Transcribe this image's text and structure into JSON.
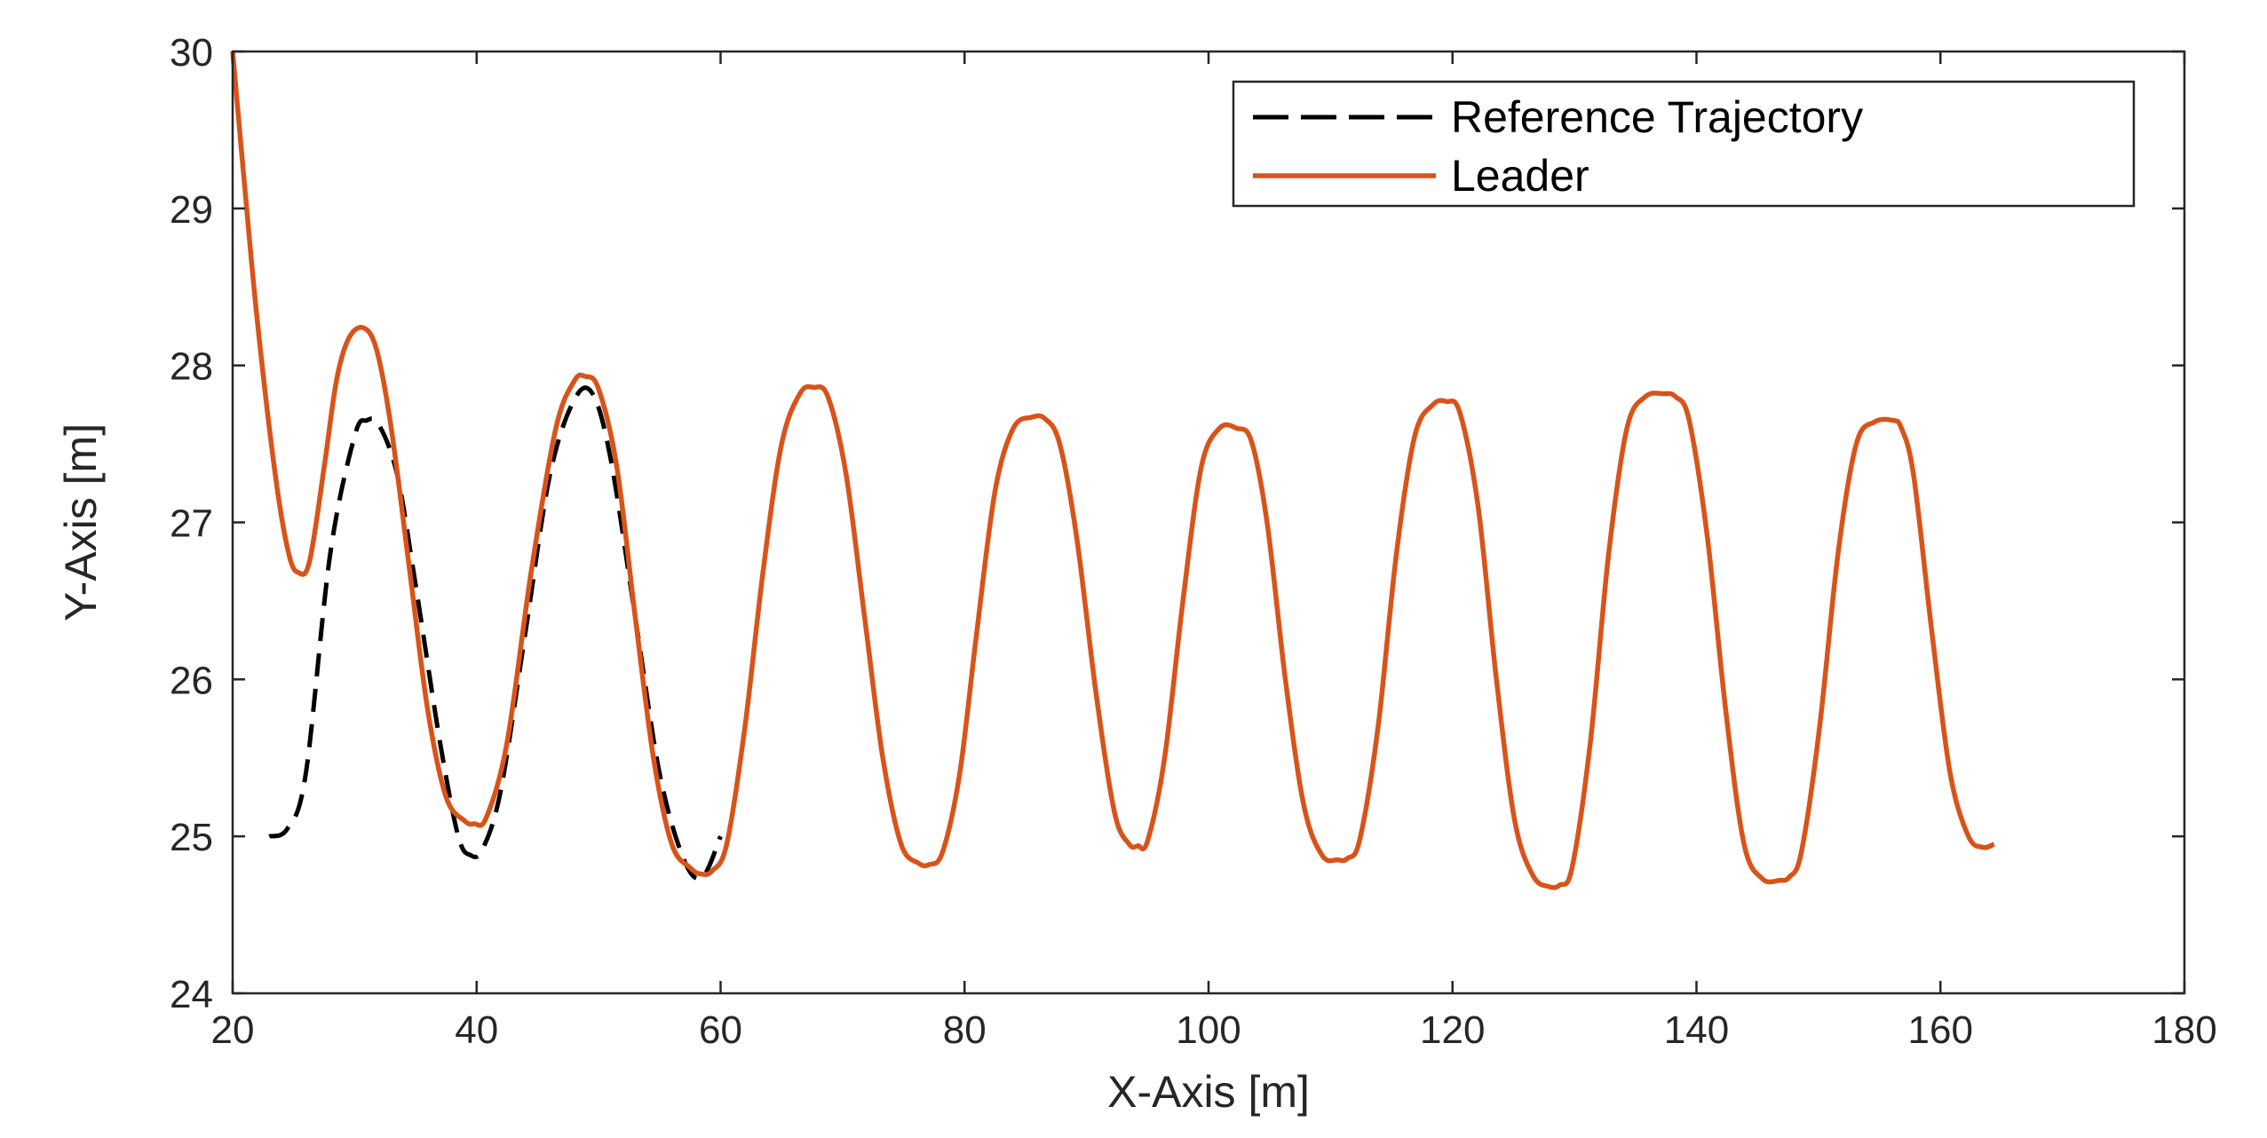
{
  "chart_data": {
    "type": "line",
    "title": "",
    "xlabel": "X-Axis [m]",
    "ylabel": "Y-Axis [m]",
    "xlim": [
      20,
      180
    ],
    "ylim": [
      24,
      30
    ],
    "xticks": [
      "20",
      "40",
      "60",
      "80",
      "100",
      "120",
      "140",
      "160",
      "180"
    ],
    "yticks": [
      "24",
      "25",
      "26",
      "27",
      "28",
      "29",
      "30"
    ],
    "legend_location": "top-right",
    "series": [
      {
        "name": "Reference Trajectory",
        "style": "dashed",
        "color": "#000000",
        "x": [
          23,
          24.5,
          26,
          28,
          30,
          31,
          32,
          33.5,
          35,
          37,
          38.5,
          39.5,
          40.5,
          42,
          44,
          46,
          48,
          49.5,
          51,
          53,
          55,
          57,
          58.5,
          60
        ],
        "y": [
          25.0,
          25.05,
          25.4,
          26.8,
          27.55,
          27.65,
          27.62,
          27.3,
          26.6,
          25.6,
          25.0,
          24.88,
          24.92,
          25.3,
          26.3,
          27.3,
          27.78,
          27.82,
          27.4,
          26.4,
          25.4,
          24.85,
          24.74,
          25.0
        ]
      },
      {
        "name": "Leader",
        "style": "solid",
        "color": "#D95319",
        "x": [
          20,
          20.8,
          22,
          23.5,
          24.6,
          25.4,
          26.3,
          27.5,
          28.5,
          29.5,
          30.7,
          31.8,
          33,
          34.5,
          36,
          37.5,
          39,
          39.8,
          40.8,
          42.5,
          44.5,
          46.5,
          48,
          48.9,
          50,
          51.5,
          53,
          54.5,
          56,
          57.5,
          58.4,
          59.3,
          60.5,
          62,
          63.5,
          65,
          66.5,
          67.6,
          68.8,
          70.3,
          71.8,
          73.3,
          74.8,
          76.2,
          77.1,
          78.2,
          79.6,
          81,
          82.5,
          84,
          85.5,
          86.6,
          87.8,
          89.2,
          90.8,
          92.3,
          93.5,
          94.2,
          95,
          96.4,
          97.9,
          99.4,
          100.9,
          102.3,
          103.5,
          104.8,
          106.3,
          107.8,
          109.3,
          110.6,
          111.4,
          112.4,
          113.9,
          115.4,
          116.9,
          118.4,
          119.5,
          120.6,
          122.1,
          123.6,
          125.1,
          126.6,
          127.9,
          128.8,
          129.8,
          131.3,
          132.8,
          134.3,
          135.8,
          137.3,
          138.3,
          139.4,
          140.9,
          142.4,
          143.9,
          145.4,
          146.8,
          147.6,
          148.6,
          150.1,
          151.6,
          153.1,
          154.6,
          156.1,
          156.8,
          157.8,
          159.3,
          160.8,
          162.3,
          163.5,
          164.4
        ],
        "y": [
          30.0,
          29.3,
          28.3,
          27.3,
          26.8,
          26.68,
          26.75,
          27.35,
          27.9,
          28.17,
          28.24,
          28.1,
          27.6,
          26.7,
          25.8,
          25.25,
          25.1,
          25.08,
          25.12,
          25.6,
          26.7,
          27.6,
          27.9,
          27.93,
          27.85,
          27.35,
          26.4,
          25.5,
          24.95,
          24.8,
          24.76,
          24.78,
          24.95,
          25.7,
          26.7,
          27.5,
          27.82,
          27.86,
          27.8,
          27.3,
          26.4,
          25.5,
          24.95,
          24.83,
          24.82,
          24.9,
          25.4,
          26.3,
          27.2,
          27.6,
          27.67,
          27.66,
          27.5,
          26.9,
          25.9,
          25.15,
          24.95,
          24.94,
          24.97,
          25.5,
          26.5,
          27.35,
          27.6,
          27.6,
          27.52,
          27.0,
          26.0,
          25.2,
          24.88,
          24.85,
          24.86,
          24.98,
          25.7,
          26.8,
          27.55,
          27.75,
          27.77,
          27.7,
          27.1,
          26.0,
          25.1,
          24.75,
          24.68,
          24.69,
          24.8,
          25.6,
          26.8,
          27.6,
          27.8,
          27.82,
          27.8,
          27.65,
          26.9,
          25.8,
          24.95,
          24.73,
          24.72,
          24.74,
          24.9,
          25.7,
          26.8,
          27.5,
          27.64,
          27.65,
          27.6,
          27.3,
          26.3,
          25.4,
          25.0,
          24.93,
          24.95
        ]
      }
    ]
  }
}
